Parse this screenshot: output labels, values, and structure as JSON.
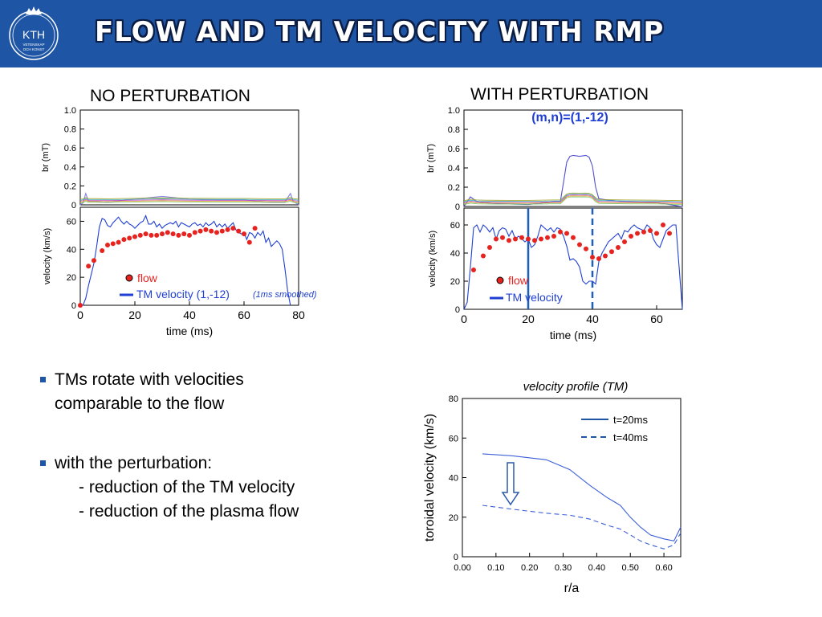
{
  "header": {
    "title": "FLOW AND TM VELOCITY WITH RMP",
    "logo_text": "KTH",
    "logo_subtext": [
      "VETENSKAP",
      "OCH KONST"
    ]
  },
  "panels": {
    "left_title": "NO PERTURBATION",
    "right_title": "WITH PERTURBATION",
    "right_mode": "(m,n)=(1,-12)"
  },
  "legend": {
    "flow": "flow",
    "tm_left": "TM velocity (1,-12)",
    "tm_left_note": "(1ms smoothed)",
    "tm_right": "TM velocity"
  },
  "bullets": {
    "b1_line1": "TMs rotate with velocities",
    "b1_line2": "comparable to the flow",
    "b2": "with the perturbation:",
    "b2_sub1": "- reduction of the TM velocity",
    "b2_sub2": "- reduction of the plasma flow"
  },
  "colors": {
    "header": "#1e55a5",
    "tm_line": "#1f3fd4",
    "flow_dot": "#e8231f",
    "profile_line": "#3b5fd8",
    "marker_line": "#1e5fb8"
  },
  "chart_data": [
    {
      "id": "left_br",
      "type": "line",
      "ylabel": "br  (mT)",
      "xlim": [
        0,
        80
      ],
      "ylim": [
        0,
        1.0
      ],
      "yticks": [
        "0",
        "0.2",
        "0.4",
        "0.6",
        "0.8",
        "1.0"
      ],
      "series": [
        {
          "x": [
            0,
            1,
            2,
            3,
            5,
            10,
            20,
            30,
            40,
            50,
            60,
            70,
            75,
            77,
            78,
            80
          ],
          "values": [
            0,
            0.02,
            0.12,
            0.04,
            0.04,
            0.03,
            0.06,
            0.09,
            0.06,
            0.05,
            0.05,
            0.03,
            0.03,
            0.12,
            0.04,
            0
          ]
        }
      ]
    },
    {
      "id": "left_velocity",
      "type": "line",
      "ylabel": "velocity (km/s)",
      "xlabel": "time (ms)",
      "xlim": [
        0,
        80
      ],
      "ylim": [
        0,
        70
      ],
      "yticks": [
        "0",
        "20",
        "40",
        "60"
      ],
      "xticks": [
        "0",
        "20",
        "40",
        "60",
        "80"
      ],
      "series": [
        {
          "name": "TM velocity (1,-12)",
          "x": [
            0,
            1,
            2,
            3,
            4,
            5,
            6,
            7,
            8,
            9,
            10,
            11,
            12,
            13,
            14,
            15,
            16,
            17,
            18,
            19,
            20,
            21,
            22,
            23,
            24,
            25,
            26,
            27,
            28,
            29,
            30,
            31,
            32,
            33,
            34,
            35,
            36,
            37,
            38,
            39,
            40,
            41,
            42,
            43,
            44,
            45,
            46,
            47,
            48,
            49,
            50,
            51,
            52,
            53,
            54,
            55,
            56,
            57,
            58,
            59,
            60,
            61,
            62,
            63,
            64,
            65,
            66,
            67,
            68,
            69,
            70,
            71,
            72,
            73,
            74,
            75,
            76,
            77
          ],
          "values": [
            0,
            0,
            5,
            14,
            22,
            30,
            42,
            56,
            62,
            61,
            57,
            56,
            59,
            61,
            63,
            60,
            58,
            60,
            58,
            57,
            55,
            57,
            59,
            60,
            64,
            58,
            58,
            60,
            56,
            58,
            55,
            57,
            58,
            59,
            58,
            60,
            56,
            59,
            58,
            57,
            56,
            58,
            59,
            57,
            58,
            56,
            59,
            57,
            58,
            60,
            56,
            58,
            56,
            58,
            55,
            57,
            59,
            54,
            52,
            51,
            52,
            47,
            52,
            51,
            48,
            52,
            50,
            53,
            45,
            48,
            42,
            44,
            46,
            44,
            40,
            26,
            10,
            0
          ]
        },
        {
          "name": "flow",
          "x": [
            0,
            3,
            5,
            8,
            10,
            12,
            14,
            16,
            18,
            20,
            22,
            24,
            26,
            28,
            30,
            32,
            34,
            36,
            38,
            40,
            42,
            44,
            46,
            48,
            50,
            52,
            54,
            56,
            58,
            60,
            62,
            64
          ],
          "values": [
            0,
            28,
            32,
            39,
            43,
            44,
            45,
            47,
            48,
            49,
            50,
            51,
            50,
            50,
            51,
            52,
            51,
            50,
            51,
            50,
            52,
            53,
            54,
            53,
            52,
            53,
            54,
            55,
            53,
            51,
            45,
            55
          ]
        }
      ]
    },
    {
      "id": "right_br",
      "type": "line",
      "ylabel": "br  (mT)",
      "xlim": [
        0,
        68
      ],
      "ylim": [
        0,
        1.0
      ],
      "yticks": [
        "0",
        "0.2",
        "0.4",
        "0.6",
        "0.8",
        "1.0"
      ],
      "series": [
        {
          "x": [
            0,
            2,
            4,
            6,
            10,
            20,
            28,
            30,
            31,
            32,
            33,
            34,
            36,
            38,
            39,
            40,
            41,
            42,
            44,
            50,
            60,
            68
          ],
          "values": [
            0,
            0.1,
            0.05,
            0.04,
            0.03,
            0.02,
            0.05,
            0.05,
            0.25,
            0.46,
            0.52,
            0.53,
            0.52,
            0.53,
            0.51,
            0.42,
            0.2,
            0.08,
            0.07,
            0.05,
            0.04,
            0
          ]
        }
      ]
    },
    {
      "id": "right_velocity",
      "type": "line",
      "ylabel": "velocity (km/s)",
      "xlabel": "time (ms)",
      "xlim": [
        0,
        68
      ],
      "ylim": [
        0,
        72
      ],
      "yticks": [
        "0",
        "20",
        "40",
        "60"
      ],
      "xticks": [
        "0",
        "20",
        "40",
        "60"
      ],
      "markers": [
        {
          "x": 20,
          "style": "solid"
        },
        {
          "x": 40,
          "style": "dashed"
        }
      ],
      "series": [
        {
          "name": "TM velocity",
          "x": [
            0,
            1,
            2,
            3,
            4,
            5,
            6,
            7,
            8,
            9,
            10,
            11,
            12,
            13,
            14,
            15,
            16,
            17,
            18,
            19,
            20,
            21,
            22,
            23,
            24,
            25,
            26,
            27,
            28,
            29,
            30,
            31,
            32,
            33,
            34,
            35,
            36,
            37,
            38,
            39,
            40,
            41,
            42,
            43,
            44,
            45,
            46,
            47,
            48,
            49,
            50,
            51,
            52,
            53,
            54,
            55,
            56,
            57,
            58,
            59,
            60,
            61,
            62,
            63,
            64,
            65,
            66,
            67,
            68
          ],
          "values": [
            0,
            5,
            30,
            58,
            60,
            55,
            60,
            58,
            55,
            58,
            50,
            56,
            58,
            57,
            52,
            56,
            50,
            52,
            50,
            48,
            50,
            44,
            46,
            52,
            60,
            58,
            56,
            58,
            55,
            58,
            57,
            52,
            45,
            35,
            36,
            34,
            30,
            20,
            18,
            20,
            20,
            18,
            34,
            40,
            44,
            48,
            50,
            52,
            54,
            50,
            56,
            55,
            58,
            60,
            58,
            57,
            56,
            60,
            58,
            50,
            46,
            44,
            50,
            56,
            58,
            60,
            60,
            30,
            0
          ]
        },
        {
          "name": "flow",
          "x": [
            3,
            6,
            8,
            10,
            12,
            14,
            16,
            18,
            20,
            22,
            24,
            26,
            28,
            30,
            32,
            34,
            36,
            38,
            40,
            42,
            44,
            46,
            48,
            50,
            52,
            54,
            56,
            58,
            60,
            62,
            64
          ],
          "values": [
            28,
            38,
            44,
            50,
            51,
            49,
            50,
            51,
            50,
            49,
            50,
            51,
            52,
            55,
            54,
            51,
            46,
            43,
            37,
            36,
            38,
            41,
            44,
            48,
            52,
            54,
            55,
            56,
            54,
            60,
            54
          ]
        }
      ]
    },
    {
      "id": "velocity_profile",
      "type": "line",
      "title": "velocity profile (TM)",
      "ylabel": "toroidal velocity (km/s)",
      "xlabel": "r/a",
      "xlim": [
        0,
        0.65
      ],
      "ylim": [
        0,
        80
      ],
      "xticks": [
        "0.00",
        "0.10",
        "0.20",
        "0.30",
        "0.40",
        "0.50",
        "0.60"
      ],
      "yticks": [
        "0",
        "20",
        "40",
        "60",
        "80"
      ],
      "series": [
        {
          "name": "t=20ms",
          "style": "solid",
          "x": [
            0.06,
            0.15,
            0.25,
            0.32,
            0.38,
            0.43,
            0.47,
            0.5,
            0.53,
            0.56,
            0.6,
            0.63,
            0.65
          ],
          "values": [
            52,
            51,
            49,
            44,
            36,
            30,
            26,
            20,
            15,
            11,
            9,
            8,
            15
          ]
        },
        {
          "name": "t=40ms",
          "style": "dashed",
          "x": [
            0.06,
            0.15,
            0.25,
            0.32,
            0.38,
            0.43,
            0.47,
            0.5,
            0.53,
            0.56,
            0.6,
            0.63,
            0.65
          ],
          "values": [
            26,
            24,
            22,
            21,
            19,
            16,
            14,
            11,
            8,
            6,
            4,
            6,
            12
          ]
        }
      ]
    }
  ]
}
